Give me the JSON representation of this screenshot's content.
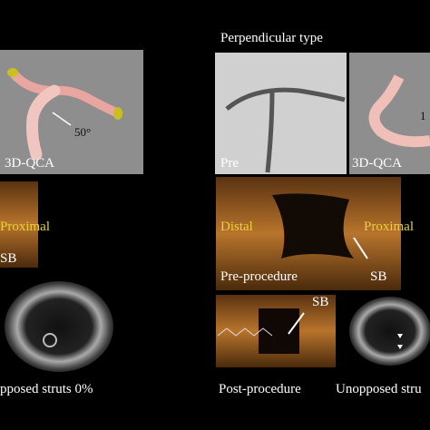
{
  "header": {
    "title": "Perpendicular type"
  },
  "left": {
    "angle": "50°",
    "qca_label": "3D-QCA",
    "oct_proximal": "Proximal",
    "oct_sb": "SB",
    "struts": "pposed struts 0%"
  },
  "right": {
    "pre": "Pre",
    "qca_label": "3D-QCA",
    "angle": "1",
    "long_oct": {
      "distal": "Distal",
      "proximal": "Proximal",
      "stage": "Pre-procedure",
      "sb": "SB"
    },
    "post": {
      "sb": "SB",
      "stage": "Post-procedure"
    },
    "struts": "Unopposed stru"
  }
}
